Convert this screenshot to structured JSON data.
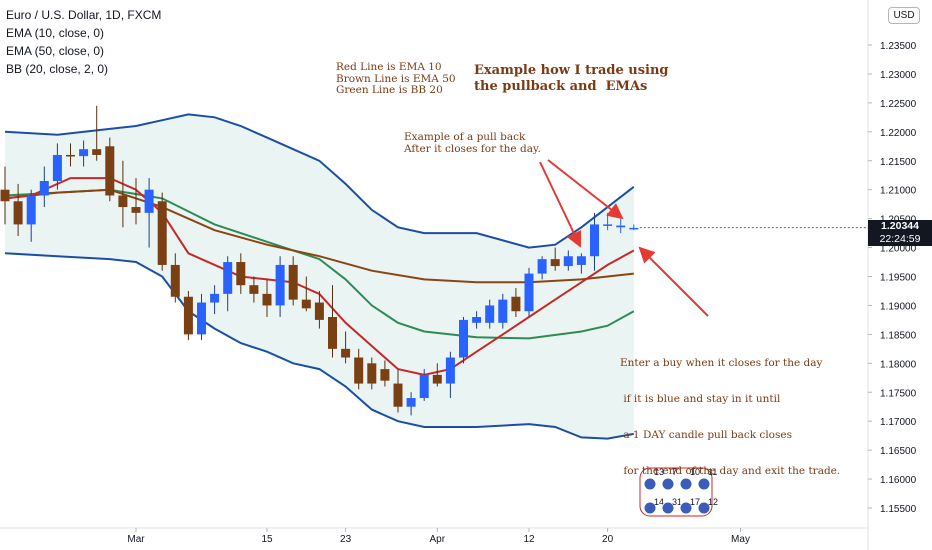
{
  "legend": {
    "title": "Euro / U.S. Dollar, 1D, FXCM",
    "items": [
      "EMA (10, close, 0)",
      "EMA (50, close, 0)",
      "BB (20, close, 2, 0)"
    ]
  },
  "currency_badge": "USD",
  "annotations": {
    "line_key": [
      "Red Line is EMA 10",
      "Brown Line is EMA 50",
      "Green Line is BB 20"
    ],
    "headline": [
      "Example how I trade using",
      "the pullback and  EMAs"
    ],
    "pullback": [
      "Example of a pull back",
      "After it closes for the day."
    ],
    "rules": [
      "Enter a buy when it closes for the day",
      " if it is blue and stay in it until",
      " a 1 DAY candle pull back closes",
      " for the end of the day and exit the trade."
    ]
  },
  "price_label": {
    "price": "1.20344",
    "countdown": "22:24:59"
  },
  "event_counts": {
    "row1": [
      "13",
      "7",
      "10",
      "11"
    ],
    "row2": [
      "14",
      "31",
      "17",
      "12"
    ]
  },
  "colors": {
    "up": "#2962ff",
    "down": "#7b3f14",
    "ema10": "#c62828",
    "ema50": "#8b4513",
    "bb_basis": "#2e8b57",
    "bb_band": "#1c4ea6",
    "bb_fill": "#eaf4f2",
    "arrow": "#e53935"
  },
  "chart_data": {
    "type": "candlestick",
    "title": "Euro / U.S. Dollar, 1D, FXCM",
    "y_ticks": [
      1.155,
      1.16,
      1.165,
      1.17,
      1.175,
      1.18,
      1.185,
      1.19,
      1.195,
      1.2,
      1.205,
      1.21,
      1.215,
      1.22,
      1.225,
      1.23,
      1.235
    ],
    "y_tick_labels": [
      "1.15500",
      "1.16000",
      "1.16500",
      "1.17000",
      "1.17500",
      "1.18000",
      "1.18500",
      "1.19000",
      "1.19500",
      "1.20000",
      "1.20500",
      "1.21000",
      "1.21500",
      "1.22000",
      "1.22500",
      "1.23000",
      "1.23500"
    ],
    "ylim": [
      1.1525,
      1.2395
    ],
    "x_labels": [
      {
        "i": 10,
        "label": "Mar"
      },
      {
        "i": 20,
        "label": "15"
      },
      {
        "i": 26,
        "label": "23"
      },
      {
        "i": 33,
        "label": "Apr"
      },
      {
        "i": 40,
        "label": "12"
      },
      {
        "i": 46,
        "label": "20"
      },
      {
        "i": 55,
        "label": "May"
      }
    ],
    "x_count": 70,
    "candles": [
      {
        "o": 1.21,
        "h": 1.214,
        "l": 1.204,
        "c": 1.208
      },
      {
        "o": 1.208,
        "h": 1.211,
        "l": 1.202,
        "c": 1.204
      },
      {
        "o": 1.204,
        "h": 1.21,
        "l": 1.201,
        "c": 1.209
      },
      {
        "o": 1.209,
        "h": 1.214,
        "l": 1.207,
        "c": 1.2115
      },
      {
        "o": 1.2115,
        "h": 1.218,
        "l": 1.21,
        "c": 1.216
      },
      {
        "o": 1.216,
        "h": 1.218,
        "l": 1.214,
        "c": 1.2158
      },
      {
        "o": 1.2158,
        "h": 1.2185,
        "l": 1.214,
        "c": 1.217
      },
      {
        "o": 1.217,
        "h": 1.2245,
        "l": 1.215,
        "c": 1.216
      },
      {
        "o": 1.2175,
        "h": 1.219,
        "l": 1.208,
        "c": 1.209
      },
      {
        "o": 1.209,
        "h": 1.215,
        "l": 1.2035,
        "c": 1.207
      },
      {
        "o": 1.207,
        "h": 1.212,
        "l": 1.204,
        "c": 1.206
      },
      {
        "o": 1.206,
        "h": 1.212,
        "l": 1.2,
        "c": 1.21
      },
      {
        "o": 1.208,
        "h": 1.2095,
        "l": 1.196,
        "c": 1.197
      },
      {
        "o": 1.197,
        "h": 1.199,
        "l": 1.1905,
        "c": 1.1915
      },
      {
        "o": 1.1915,
        "h": 1.1925,
        "l": 1.184,
        "c": 1.185
      },
      {
        "o": 1.185,
        "h": 1.192,
        "l": 1.184,
        "c": 1.1905
      },
      {
        "o": 1.1905,
        "h": 1.1935,
        "l": 1.1885,
        "c": 1.192
      },
      {
        "o": 1.192,
        "h": 1.1985,
        "l": 1.189,
        "c": 1.1975
      },
      {
        "o": 1.1975,
        "h": 1.199,
        "l": 1.192,
        "c": 1.1935
      },
      {
        "o": 1.1935,
        "h": 1.195,
        "l": 1.1905,
        "c": 1.192
      },
      {
        "o": 1.192,
        "h": 1.1945,
        "l": 1.188,
        "c": 1.19
      },
      {
        "o": 1.19,
        "h": 1.1985,
        "l": 1.188,
        "c": 1.197
      },
      {
        "o": 1.197,
        "h": 1.1985,
        "l": 1.19,
        "c": 1.191
      },
      {
        "o": 1.191,
        "h": 1.195,
        "l": 1.189,
        "c": 1.1895
      },
      {
        "o": 1.1905,
        "h": 1.1925,
        "l": 1.186,
        "c": 1.1875
      },
      {
        "o": 1.188,
        "h": 1.1935,
        "l": 1.181,
        "c": 1.1825
      },
      {
        "o": 1.1825,
        "h": 1.1855,
        "l": 1.18,
        "c": 1.181
      },
      {
        "o": 1.181,
        "h": 1.1825,
        "l": 1.1755,
        "c": 1.1765
      },
      {
        "o": 1.18,
        "h": 1.181,
        "l": 1.1755,
        "c": 1.1765
      },
      {
        "o": 1.179,
        "h": 1.1805,
        "l": 1.176,
        "c": 1.177
      },
      {
        "o": 1.1765,
        "h": 1.179,
        "l": 1.1715,
        "c": 1.1725
      },
      {
        "o": 1.1725,
        "h": 1.175,
        "l": 1.171,
        "c": 1.174
      },
      {
        "o": 1.174,
        "h": 1.179,
        "l": 1.1735,
        "c": 1.178
      },
      {
        "o": 1.178,
        "h": 1.18,
        "l": 1.176,
        "c": 1.1765
      },
      {
        "o": 1.1765,
        "h": 1.182,
        "l": 1.174,
        "c": 1.181
      },
      {
        "o": 1.181,
        "h": 1.188,
        "l": 1.18,
        "c": 1.1875
      },
      {
        "o": 1.187,
        "h": 1.189,
        "l": 1.186,
        "c": 1.188
      },
      {
        "o": 1.187,
        "h": 1.191,
        "l": 1.186,
        "c": 1.19
      },
      {
        "o": 1.187,
        "h": 1.192,
        "l": 1.186,
        "c": 1.191
      },
      {
        "o": 1.1915,
        "h": 1.193,
        "l": 1.188,
        "c": 1.189
      },
      {
        "o": 1.189,
        "h": 1.1965,
        "l": 1.188,
        "c": 1.1955
      },
      {
        "o": 1.1955,
        "h": 1.1985,
        "l": 1.1945,
        "c": 1.198
      },
      {
        "o": 1.198,
        "h": 1.2,
        "l": 1.196,
        "c": 1.1968
      },
      {
        "o": 1.1968,
        "h": 1.1995,
        "l": 1.196,
        "c": 1.1985
      },
      {
        "o": 1.197,
        "h": 1.199,
        "l": 1.1955,
        "c": 1.1985
      },
      {
        "o": 1.1985,
        "h": 1.206,
        "l": 1.196,
        "c": 1.204
      },
      {
        "o": 1.204,
        "h": 1.206,
        "l": 1.203,
        "c": 1.204
      },
      {
        "o": 1.2035,
        "h": 1.205,
        "l": 1.2025,
        "c": 1.2038
      },
      {
        "o": 1.2034,
        "h": 1.204,
        "l": 1.203,
        "c": 1.2034
      }
    ],
    "ema10": [
      [
        0,
        1.2085
      ],
      [
        2,
        1.209
      ],
      [
        5,
        1.212
      ],
      [
        8,
        1.212
      ],
      [
        10,
        1.21
      ],
      [
        12,
        1.206
      ],
      [
        14,
        1.199
      ],
      [
        16,
        1.197
      ],
      [
        18,
        1.195
      ],
      [
        20,
        1.1945
      ],
      [
        22,
        1.194
      ],
      [
        24,
        1.192
      ],
      [
        26,
        1.187
      ],
      [
        28,
        1.183
      ],
      [
        30,
        1.179
      ],
      [
        32,
        1.178
      ],
      [
        34,
        1.179
      ],
      [
        36,
        1.182
      ],
      [
        38,
        1.185
      ],
      [
        40,
        1.188
      ],
      [
        42,
        1.191
      ],
      [
        44,
        1.194
      ],
      [
        46,
        1.197
      ],
      [
        48,
        1.1995
      ]
    ],
    "ema50": [
      [
        0,
        1.2085
      ],
      [
        4,
        1.2095
      ],
      [
        8,
        1.21
      ],
      [
        12,
        1.207
      ],
      [
        16,
        1.203
      ],
      [
        20,
        1.2005
      ],
      [
        24,
        1.1985
      ],
      [
        28,
        1.196
      ],
      [
        32,
        1.1945
      ],
      [
        36,
        1.194
      ],
      [
        40,
        1.194
      ],
      [
        44,
        1.1945
      ],
      [
        48,
        1.1955
      ]
    ],
    "bb_basis": [
      [
        0,
        1.209
      ],
      [
        4,
        1.2095
      ],
      [
        8,
        1.21
      ],
      [
        12,
        1.2085
      ],
      [
        16,
        1.204
      ],
      [
        20,
        1.201
      ],
      [
        24,
        1.198
      ],
      [
        26,
        1.1945
      ],
      [
        28,
        1.19
      ],
      [
        30,
        1.187
      ],
      [
        32,
        1.1855
      ],
      [
        36,
        1.1845
      ],
      [
        40,
        1.1843
      ],
      [
        44,
        1.1855
      ],
      [
        46,
        1.1865
      ],
      [
        48,
        1.189
      ]
    ],
    "bb_upper": [
      [
        0,
        1.22
      ],
      [
        4,
        1.2195
      ],
      [
        8,
        1.2205
      ],
      [
        10,
        1.221
      ],
      [
        12,
        1.222
      ],
      [
        14,
        1.223
      ],
      [
        16,
        1.2225
      ],
      [
        18,
        1.221
      ],
      [
        20,
        1.219
      ],
      [
        22,
        1.217
      ],
      [
        24,
        1.215
      ],
      [
        26,
        1.211
      ],
      [
        28,
        1.2065
      ],
      [
        30,
        1.2035
      ],
      [
        32,
        1.2025
      ],
      [
        36,
        1.2025
      ],
      [
        40,
        1.2
      ],
      [
        42,
        1.2005
      ],
      [
        44,
        1.2035
      ],
      [
        46,
        1.207
      ],
      [
        48,
        1.2105
      ]
    ],
    "bb_lower": [
      [
        0,
        1.199
      ],
      [
        4,
        1.1985
      ],
      [
        8,
        1.198
      ],
      [
        10,
        1.1975
      ],
      [
        12,
        1.195
      ],
      [
        14,
        1.189
      ],
      [
        16,
        1.186
      ],
      [
        18,
        1.1835
      ],
      [
        20,
        1.182
      ],
      [
        22,
        1.18
      ],
      [
        24,
        1.179
      ],
      [
        26,
        1.176
      ],
      [
        28,
        1.172
      ],
      [
        30,
        1.17
      ],
      [
        32,
        1.169
      ],
      [
        36,
        1.169
      ],
      [
        40,
        1.1695
      ],
      [
        42,
        1.169
      ],
      [
        44,
        1.1672
      ],
      [
        46,
        1.167
      ],
      [
        48,
        1.1678
      ]
    ]
  }
}
